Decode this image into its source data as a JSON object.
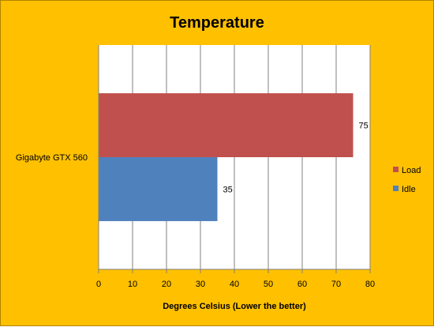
{
  "chart_data": {
    "type": "bar",
    "orientation": "horizontal",
    "title": "Temperature",
    "xlabel": "Degrees Celsius (Lower the better)",
    "ylabel": "",
    "categories": [
      "Gigabyte GTX 560"
    ],
    "series": [
      {
        "name": "Load",
        "values": [
          75
        ],
        "color": "#c0504d"
      },
      {
        "name": "Idle",
        "values": [
          35
        ],
        "color": "#4f81bd"
      }
    ],
    "xlim": [
      0,
      80
    ],
    "xticks": [
      0,
      10,
      20,
      30,
      40,
      50,
      60,
      70,
      80
    ],
    "grid": true,
    "legend_position": "right",
    "plot_background": "#ffffff",
    "chart_background": "#ffc000"
  }
}
